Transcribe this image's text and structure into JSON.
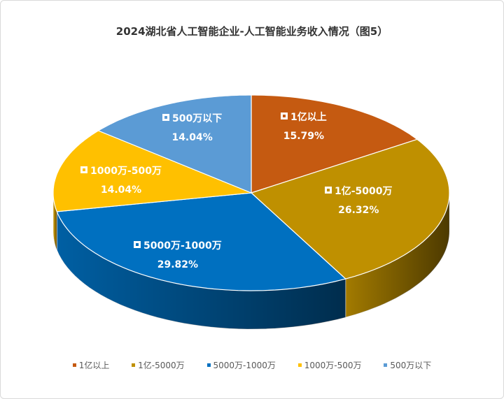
{
  "chart_data": {
    "type": "pie",
    "style": "3d",
    "title": "2024湖北省人工智能企业-人工智能业务收入情况（图5）",
    "legend_position": "bottom",
    "slices": [
      {
        "label": "1亿以上",
        "value": 15.79,
        "value_label": "15.79%",
        "color": "#C55A11"
      },
      {
        "label": "1亿-5000万",
        "value": 26.32,
        "value_label": "26.32%",
        "color": "#BF9000"
      },
      {
        "label": "5000万-1000万",
        "value": 29.82,
        "value_label": "29.82%",
        "color": "#0070C0"
      },
      {
        "label": "1000万-500万",
        "value": 14.04,
        "value_label": "14.04%",
        "color": "#FFC000"
      },
      {
        "label": "500万以下",
        "value": 14.04,
        "value_label": "14.04%",
        "color": "#5B9BD5"
      }
    ]
  }
}
